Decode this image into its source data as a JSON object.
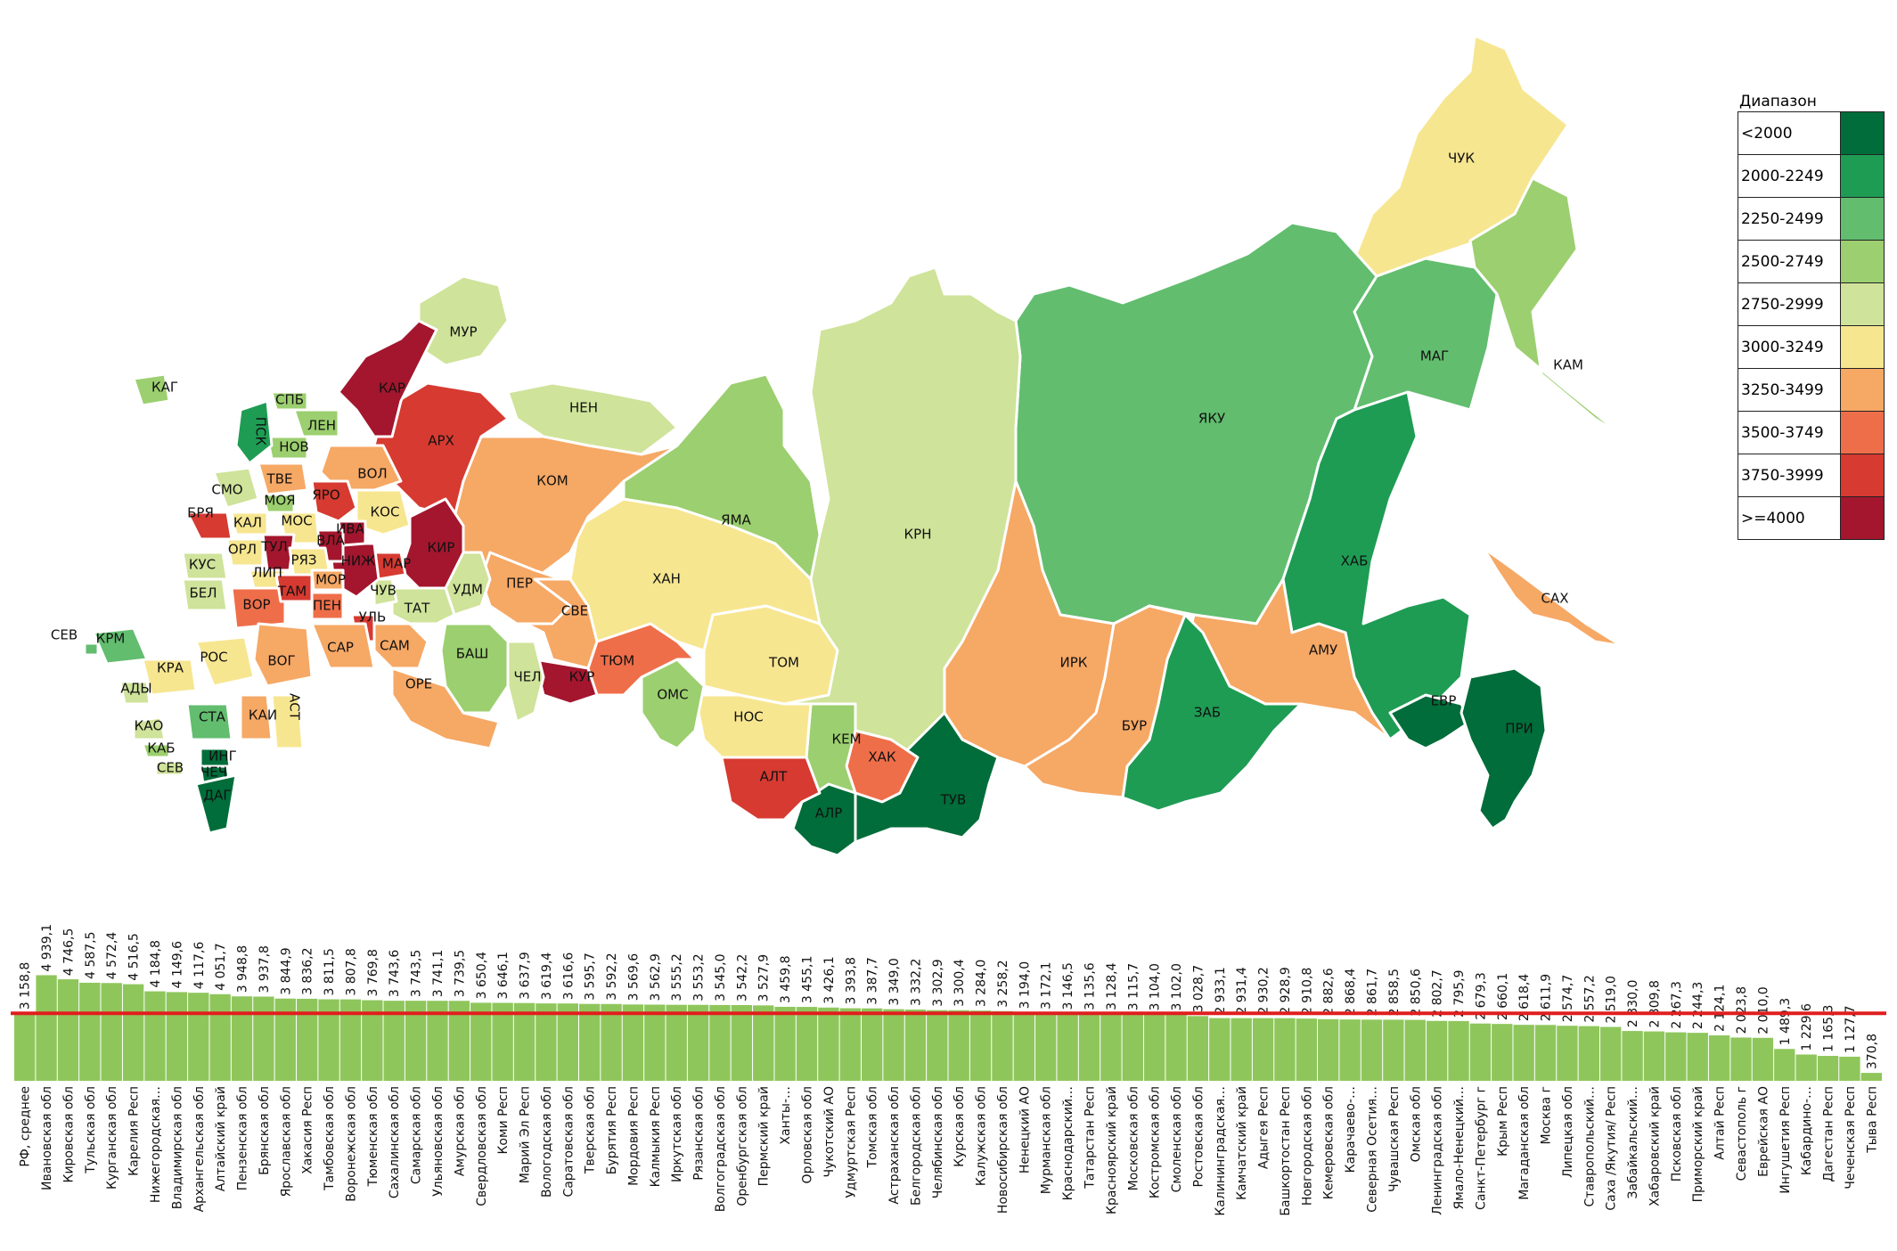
{
  "legend": {
    "title": "Диапазон",
    "items": [
      {
        "label": "<2000",
        "color": "#006d3a"
      },
      {
        "label": "2000-2249",
        "color": "#1e9c54"
      },
      {
        "label": "2250-2499",
        "color": "#62bd6f"
      },
      {
        "label": "2500-2749",
        "color": "#9ccf6f"
      },
      {
        "label": "2750-2999",
        "color": "#cfe39a"
      },
      {
        "label": "3000-3249",
        "color": "#f7e690"
      },
      {
        "label": "3250-3499",
        "color": "#f6a865"
      },
      {
        "label": "3500-3749",
        "color": "#ef6e4a"
      },
      {
        "label": "3750-3999",
        "color": "#d63a31"
      },
      {
        "label": ">=4000",
        "color": "#a3162e"
      }
    ]
  },
  "map_labels": {
    "chuk": "ЧУК",
    "kam": "КАМ",
    "mag": "МАГ",
    "yaku": "ЯКУ",
    "khab": "ХАБ",
    "sakh": "САХ",
    "evr": "ЕВР",
    "pri": "ПРИ",
    "amu": "АМУ",
    "zab": "ЗАБ",
    "bur": "БУР",
    "irk": "ИРК",
    "tuv": "ТУВ",
    "krn": "КРН",
    "khak": "ХАК",
    "kem": "КЕМ",
    "alr": "АЛР",
    "alt": "АЛТ",
    "nos": "НОС",
    "tom": "ТОМ",
    "oms": "ОМС",
    "tyum": "ТЮМ",
    "kur": "КУР",
    "khan": "ХАН",
    "yama": "ЯМА",
    "nen": "НЕН",
    "kom": "КОМ",
    "arkh": "АРХ",
    "mur": "МУР",
    "kar": "КАР",
    "per": "ПЕР",
    "sve": "СВЕ",
    "che": "ЧЕЛ",
    "bash": "БАШ",
    "ore": "ОРЕ",
    "udm": "УДМ",
    "kir": "КИР",
    "tat": "ТАТ",
    "sam": "САМ",
    "ul": "УЛЬ",
    "chuv": "ЧУВ",
    "mar": "МАР",
    "nizh": "НИЖ",
    "kos": "КОС",
    "vol": "ВОЛ",
    "yar": "ЯРО",
    "iva": "ИВА",
    "vla": "ВЛА",
    "mos": "МОС",
    "moya": "МОЯ",
    "tve": "ТВЕ",
    "nov": "НОВ",
    "len": "ЛЕН",
    "spb": "СПБ",
    "psk": "ПСК",
    "smo": "СМО",
    "kal": "КАЛ",
    "brya": "БРЯ",
    "orl": "ОРЛ",
    "tul": "ТУЛ",
    "rya": "РЯЗ",
    "lip": "ЛИП",
    "kus": "КУС",
    "bel": "БЕЛ",
    "vor": "ВОР",
    "tam": "ТАМ",
    "pen": "ПЕН",
    "mor": "МОР",
    "sar": "САР",
    "vog": "ВОГ",
    "ros": "РОС",
    "kra": "КРА",
    "ady": "АДЫ",
    "kao": "КАО",
    "kab": "КАБ",
    "sta": "СТА",
    "kai": "КАИ",
    "ast": "АСТ",
    "sev2": "СЕВ",
    "ing": "ИНГ",
    "che2": "ЧЕЧ",
    "dag": "ДАГ",
    "sev": "СЕВ",
    "krm": "КРМ",
    "kag": "КАГ"
  },
  "chart_data": {
    "type": "bar",
    "reference_line": 3158.8,
    "categories": [
      "РФ, среднее",
      "Ивановская обл",
      "Кировская обл",
      "Тульская обл",
      "Курганская обл",
      "Карелия Респ",
      "Нижегородская…",
      "Владимирская обл",
      "Архангельская обл",
      "Алтайский край",
      "Пензенская обл",
      "Брянская обл",
      "Ярославская обл",
      "Хакасия Респ",
      "Тамбовская обл",
      "Воронежская обл",
      "Тюменская обл",
      "Сахалинская обл",
      "Самарская обл",
      "Ульяновская обл",
      "Амурская обл",
      "Свердловская обл",
      "Коми Респ",
      "Марий Эл Респ",
      "Вологодская обл",
      "Саратовская обл",
      "Тверская обл",
      "Бурятия Респ",
      "Мордовия Респ",
      "Калмыкия Респ",
      "Иркутская обл",
      "Рязанская обл",
      "Волгоградская обл",
      "Оренбургская обл",
      "Пермский край",
      "Ханты-…",
      "Орловская обл",
      "Чукотский АО",
      "Удмуртская Респ",
      "Томская обл",
      "Астраханская обл",
      "Белгородская обл",
      "Челябинская обл",
      "Курская обл",
      "Калужская обл",
      "Новосибирская обл",
      "Ненецкий АО",
      "Мурманская обл",
      "Краснодарский…",
      "Татарстан Респ",
      "Красноярский край",
      "Московская обл",
      "Костромская обл",
      "Смоленская обл",
      "Ростовская обл",
      "Калининградская…",
      "Камчатский край",
      "Адыгея Респ",
      "Башкортостан Респ",
      "Новгородская обл",
      "Кемеровская обл",
      "Карачаево-…",
      "Северная Осетия…",
      "Чувашская Респ",
      "Омская обл",
      "Ленинградская обл",
      "Ямало-Ненецкий…",
      "Санкт-Петербург г",
      "Крым Респ",
      "Магаданская обл",
      "Москва г",
      "Липецкая обл",
      "Ставропольский…",
      "Саха /Якутия/ Респ",
      "Забайкальский…",
      "Хабаровский край",
      "Псковская обл",
      "Приморский край",
      "Алтай Респ",
      "Севастополь г",
      "Еврейская АО",
      "Ингушетия Респ",
      "Кабардино-…",
      "Дагестан Респ",
      "Чеченская Респ",
      "Тыва Респ"
    ],
    "values": [
      3158.8,
      4939.1,
      4746.5,
      4587.5,
      4572.4,
      4516.5,
      4184.8,
      4149.6,
      4117.6,
      4051.7,
      3948.8,
      3937.8,
      3844.9,
      3836.2,
      3811.5,
      3807.8,
      3769.8,
      3743.6,
      3743.5,
      3741.1,
      3739.5,
      3650.4,
      3646.1,
      3637.9,
      3619.4,
      3616.6,
      3595.7,
      3592.2,
      3569.6,
      3562.9,
      3555.2,
      3553.2,
      3545.0,
      3542.2,
      3527.9,
      3459.8,
      3455.1,
      3426.1,
      3393.8,
      3387.7,
      3349.0,
      3332.2,
      3302.9,
      3300.4,
      3284.0,
      3258.2,
      3194.0,
      3172.1,
      3146.5,
      3135.6,
      3128.4,
      3115.7,
      3104.0,
      3102.0,
      3028.7,
      2933.1,
      2931.4,
      2930.2,
      2928.9,
      2910.8,
      2882.6,
      2868.4,
      2861.7,
      2858.5,
      2850.6,
      2802.7,
      2795.9,
      2679.3,
      2660.1,
      2618.4,
      2611.9,
      2574.7,
      2557.2,
      2519.0,
      2330.0,
      2309.8,
      2267.3,
      2244.3,
      2124.1,
      2023.8,
      2010.0,
      1489.3,
      1229.6,
      1165.3,
      1127.7,
      370.8
    ],
    "value_labels": [
      "3 158,8",
      "4 939,1",
      "4 746,5",
      "4 587,5",
      "4 572,4",
      "4 516,5",
      "4 184,8",
      "4 149,6",
      "4 117,6",
      "4 051,7",
      "3 948,8",
      "3 937,8",
      "3 844,9",
      "3 836,2",
      "3 811,5",
      "3 807,8",
      "3 769,8",
      "3 743,6",
      "3 743,5",
      "3 741,1",
      "3 739,5",
      "3 650,4",
      "3 646,1",
      "3 637,9",
      "3 619,4",
      "3 616,6",
      "3 595,7",
      "3 592,2",
      "3 569,6",
      "3 562,9",
      "3 555,2",
      "3 553,2",
      "3 545,0",
      "3 542,2",
      "3 527,9",
      "3 459,8",
      "3 455,1",
      "3 426,1",
      "3 393,8",
      "3 387,7",
      "3 349,0",
      "3 332,2",
      "3 302,9",
      "3 300,4",
      "3 284,0",
      "3 258,2",
      "3 194,0",
      "3 172,1",
      "3 146,5",
      "3 135,6",
      "3 128,4",
      "3 115,7",
      "3 104,0",
      "3 102,0",
      "3 028,7",
      "2 933,1",
      "2 931,4",
      "2 930,2",
      "2 928,9",
      "2 910,8",
      "2 882,6",
      "2 868,4",
      "2 861,7",
      "2 858,5",
      "2 850,6",
      "2 802,7",
      "2 795,9",
      "2 679,3",
      "2 660,1",
      "2 618,4",
      "2 611,9",
      "2 574,7",
      "2 557,2",
      "2 519,0",
      "2 330,0",
      "2 309,8",
      "2 267,3",
      "2 244,3",
      "2 124,1",
      "2 023,8",
      "2 010,0",
      "1 489,3",
      "1 229,6",
      "1 165,3",
      "1 127,7",
      "370,8"
    ],
    "bar_color": "#8fc65c",
    "reference_color": "#e01e1e"
  }
}
